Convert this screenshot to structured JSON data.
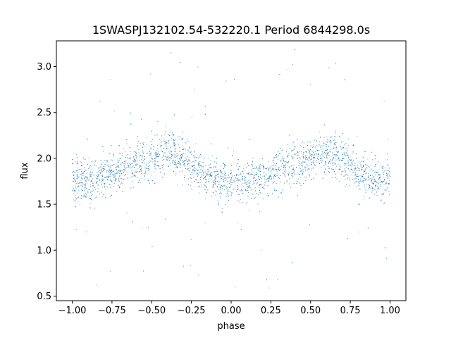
{
  "chart_data": {
    "type": "scatter",
    "title": "1SWASPJ132102.54-532220.1 Period 6844298.0s",
    "xlabel": "phase",
    "ylabel": "flux",
    "xlim": [
      -1.1,
      1.1
    ],
    "ylim": [
      0.45,
      3.28
    ],
    "xticks": [
      -1.0,
      -0.75,
      -0.5,
      -0.25,
      0.0,
      0.25,
      0.5,
      0.75,
      1.0
    ],
    "xtick_labels": [
      "−1.00",
      "−0.75",
      "−0.50",
      "−0.25",
      "0.00",
      "0.25",
      "0.50",
      "0.75",
      "1.00"
    ],
    "yticks": [
      0.5,
      1.0,
      1.5,
      2.0,
      2.5,
      3.0
    ],
    "ytick_labels": [
      "0.5",
      "1.0",
      "1.5",
      "2.0",
      "2.5",
      "3.0"
    ],
    "grid": false,
    "legend": "none",
    "marker_color": "#1f77b4",
    "series": [
      {
        "x": [
          -1.0,
          -0.95,
          -0.9,
          -0.85,
          -0.8,
          -0.75,
          -0.7,
          -0.65,
          -0.6,
          -0.55,
          -0.5,
          -0.45,
          -0.4,
          -0.35,
          -0.3,
          -0.25,
          -0.2,
          -0.15,
          -0.1,
          -0.05,
          0.0,
          0.05,
          0.1,
          0.15,
          0.2,
          0.25,
          0.3,
          0.35,
          0.4,
          0.45,
          0.5,
          0.55,
          0.6,
          0.65,
          0.7,
          0.75,
          0.8,
          0.85,
          0.9,
          0.95,
          1.0
        ],
        "y": [
          1.78,
          1.76,
          1.74,
          1.76,
          1.8,
          1.84,
          1.88,
          1.92,
          1.95,
          1.98,
          2.0,
          2.03,
          2.08,
          2.04,
          1.98,
          1.92,
          1.86,
          1.82,
          1.78,
          1.76,
          1.76,
          1.75,
          1.74,
          1.76,
          1.8,
          1.84,
          1.88,
          1.92,
          1.95,
          1.98,
          2.0,
          2.03,
          2.08,
          2.04,
          1.98,
          1.92,
          1.86,
          1.82,
          1.78,
          1.76,
          1.78
        ]
      }
    ]
  }
}
